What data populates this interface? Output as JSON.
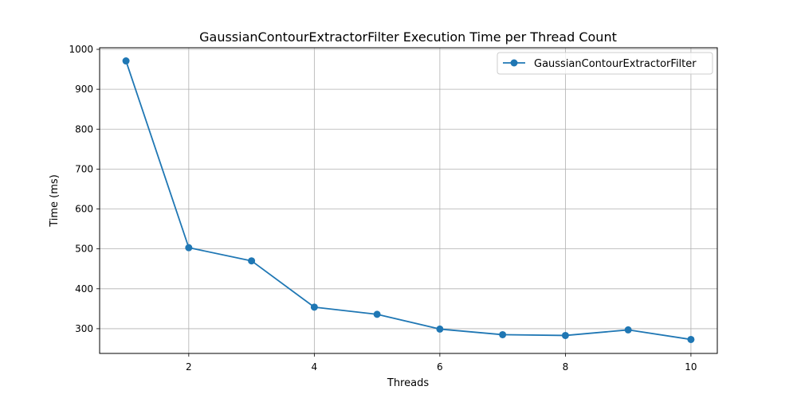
{
  "chart_data": {
    "type": "line",
    "title": "GaussianContourExtractorFilter Execution Time per Thread Count",
    "xlabel": "Threads",
    "ylabel": "Time (ms)",
    "xlim": [
      0.58,
      10.42
    ],
    "ylim": [
      238,
      1004
    ],
    "xticks": [
      2,
      4,
      6,
      8,
      10
    ],
    "yticks": [
      300,
      400,
      500,
      600,
      700,
      800,
      900,
      1000
    ],
    "grid": true,
    "legend_position": "top-right",
    "series": [
      {
        "name": "GaussianContourExtractorFilter",
        "color": "#1f77b4",
        "marker": "circle",
        "x": [
          1,
          2,
          3,
          4,
          5,
          6,
          7,
          8,
          9,
          10
        ],
        "values": [
          971,
          503,
          470,
          354,
          336,
          299,
          285,
          283,
          297,
          273
        ]
      }
    ]
  }
}
